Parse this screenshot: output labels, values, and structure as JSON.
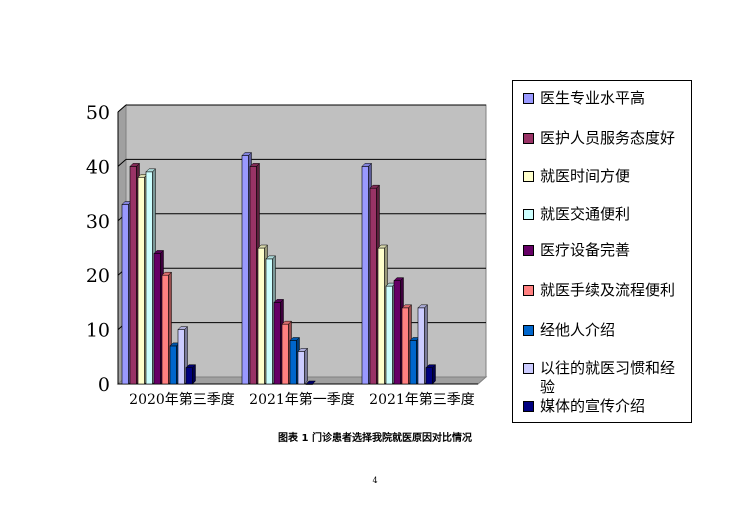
{
  "chart_data": {
    "type": "bar",
    "style": "3d-clustered",
    "categories": [
      "2020年第三季度",
      "2021年第一季度",
      "2021年第三季度"
    ],
    "ylim": [
      0,
      50
    ],
    "yticks": [
      0,
      10,
      20,
      30,
      40,
      50
    ],
    "grid": true,
    "legend_position": "right",
    "series": [
      {
        "name": "医生专业水平高",
        "color": "#9999ff",
        "values": [
          33,
          42,
          40
        ]
      },
      {
        "name": "医护人员服务态度好",
        "color": "#993366",
        "values": [
          40,
          40,
          36
        ]
      },
      {
        "name": "就医时间方便",
        "color": "#ffffcc",
        "values": [
          38,
          25,
          25
        ]
      },
      {
        "name": "就医交通便利",
        "color": "#ccffff",
        "values": [
          39,
          23,
          18
        ]
      },
      {
        "name": "医疗设备完善",
        "color": "#660066",
        "values": [
          24,
          15,
          19
        ]
      },
      {
        "name": "就医手续及流程便利",
        "color": "#ff8080",
        "values": [
          20,
          11,
          14
        ]
      },
      {
        "name": "经他人介绍",
        "color": "#0066cc",
        "values": [
          7,
          8,
          8
        ]
      },
      {
        "name": "以往的就医习惯和经验",
        "color": "#ccccff",
        "values": [
          10,
          6,
          14
        ]
      },
      {
        "name": "媒体的宣传介绍",
        "color": "#000080",
        "values": [
          3,
          0,
          3
        ]
      }
    ]
  },
  "caption": "图表 1    门诊患者选择我院就医原因对比情况",
  "page_number": "4"
}
